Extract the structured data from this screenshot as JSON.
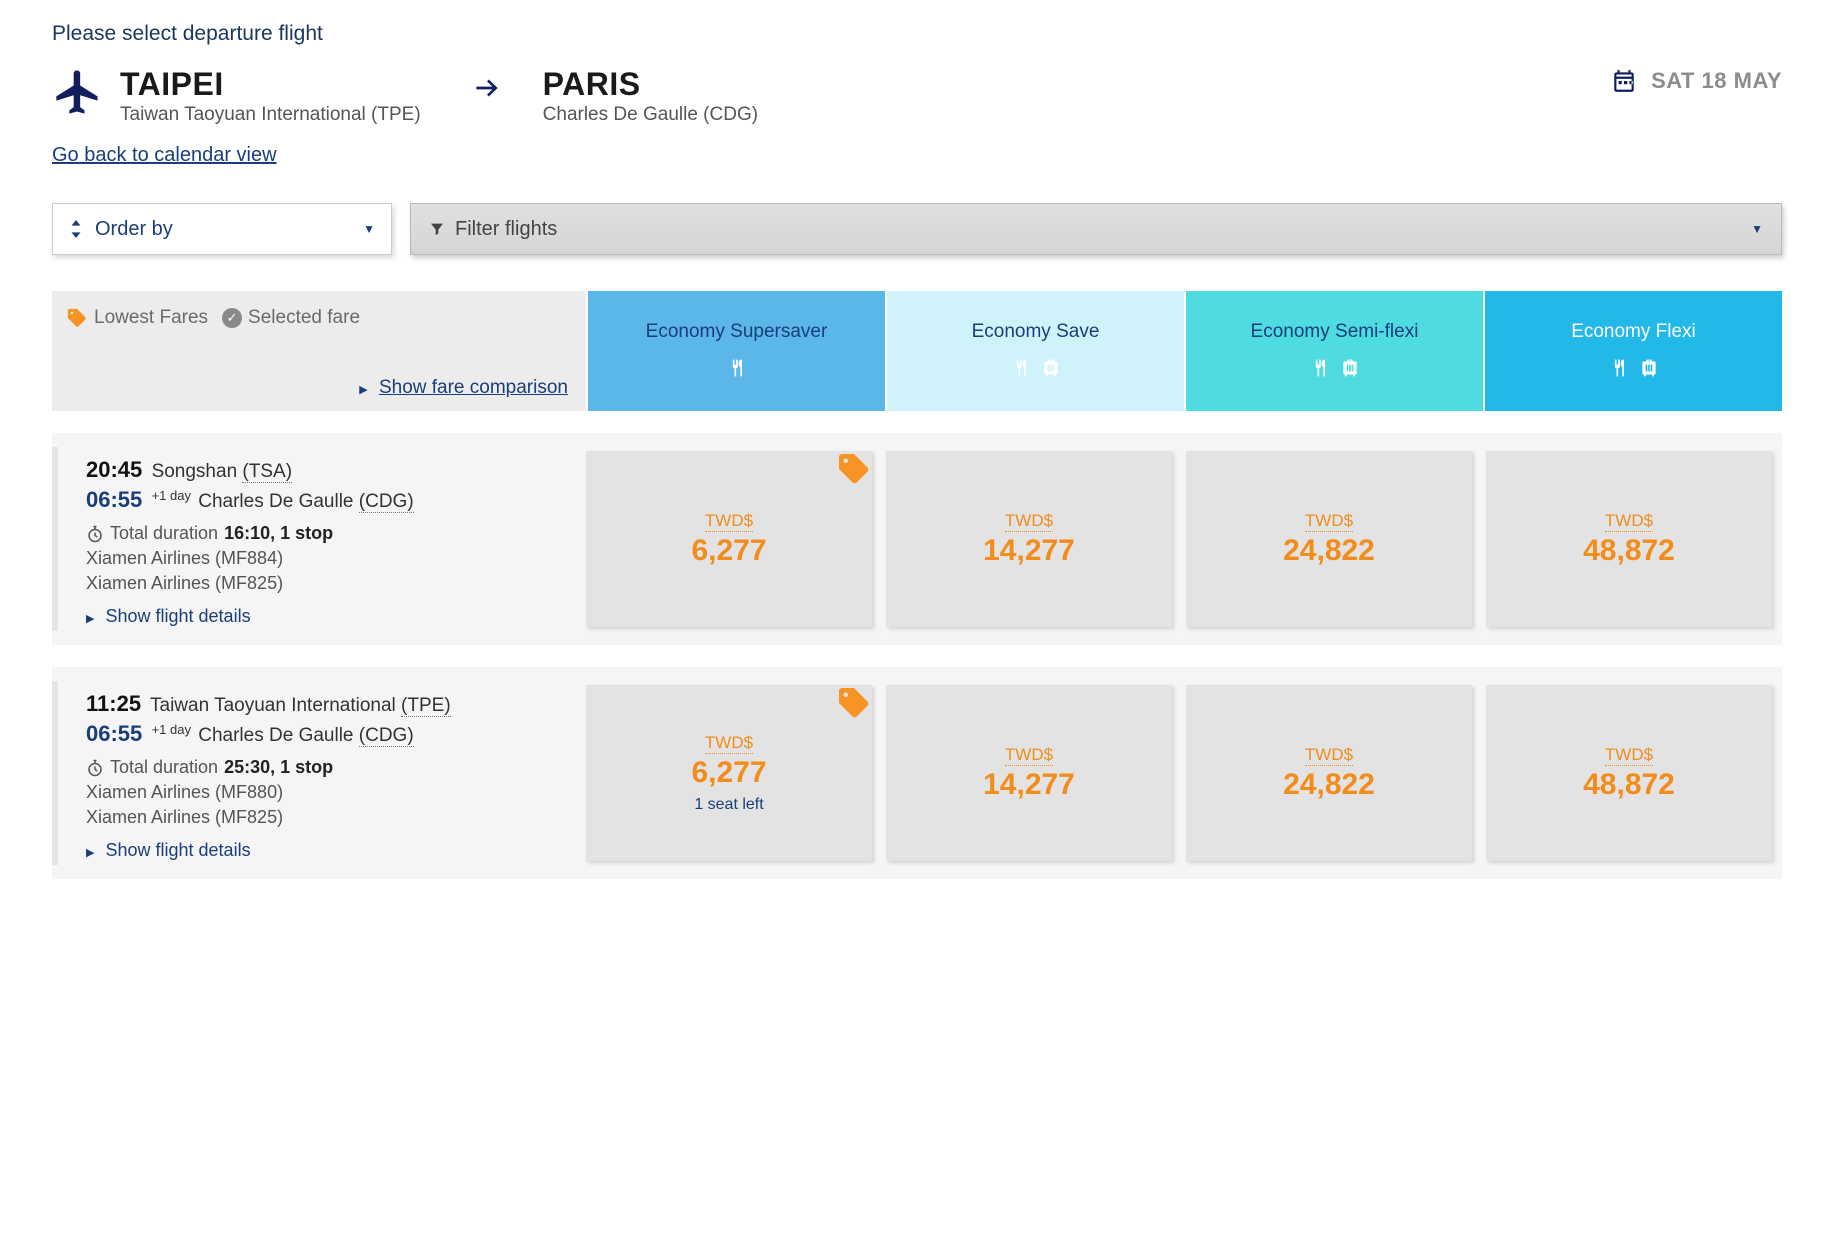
{
  "instruction": "Please select departure flight",
  "route": {
    "origin_city": "TAIPEI",
    "origin_airport": "Taiwan Taoyuan International (TPE)",
    "dest_city": "PARIS",
    "dest_airport": "Charles De Gaulle (CDG)",
    "date_label": "SAT 18 MAY"
  },
  "links": {
    "back_to_calendar": "Go back to calendar view",
    "order_by": "Order by",
    "filter_flights": "Filter flights",
    "show_fare_comparison": "Show fare comparison",
    "show_flight_details": "Show flight details"
  },
  "legend": {
    "lowest_fares": "Lowest Fares",
    "selected_fare": "Selected fare"
  },
  "fare_columns": {
    "supersaver": "Economy Supersaver",
    "save": "Economy Save",
    "semiflexi": "Economy Semi-flexi",
    "flexi": "Economy Flexi"
  },
  "colors": {
    "supersaver_bg": "#5bb6ea",
    "save_bg": "#d0f3fb",
    "semiflexi_bg": "#4fdce1",
    "flexi_bg": "#22b9e8",
    "accent_orange": "#f28c1a",
    "brand_navy": "#1a3e7a"
  },
  "flights": [
    {
      "dep_time": "20:45",
      "dep_airport": "Songshan",
      "dep_code": "(TSA)",
      "arr_time": "06:55",
      "arr_plus": "+1 day",
      "arr_airport": "Charles De Gaulle",
      "arr_code": "(CDG)",
      "duration_prefix": "Total duration",
      "duration_value": "16:10, 1 stop",
      "carriers": [
        "Xiamen Airlines (MF884)",
        "Xiamen Airlines (MF825)"
      ],
      "prices": {
        "currency": "TWD$",
        "supersaver": "6,277",
        "save": "14,277",
        "semiflexi": "24,822",
        "flexi": "48,872"
      },
      "lowest_tag_on": "supersaver",
      "note": ""
    },
    {
      "dep_time": "11:25",
      "dep_airport": "Taiwan Taoyuan International",
      "dep_code": "(TPE)",
      "arr_time": "06:55",
      "arr_plus": "+1 day",
      "arr_airport": "Charles De Gaulle",
      "arr_code": "(CDG)",
      "duration_prefix": "Total duration",
      "duration_value": "25:30, 1 stop",
      "carriers": [
        "Xiamen Airlines (MF880)",
        "Xiamen Airlines (MF825)"
      ],
      "prices": {
        "currency": "TWD$",
        "supersaver": "6,277",
        "save": "14,277",
        "semiflexi": "24,822",
        "flexi": "48,872"
      },
      "lowest_tag_on": "supersaver",
      "note": "1 seat left"
    }
  ]
}
